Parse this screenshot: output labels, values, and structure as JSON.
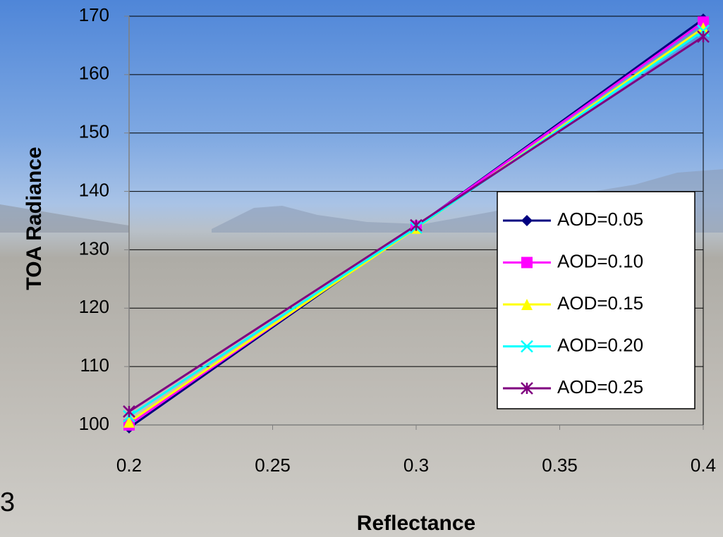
{
  "chart_data": {
    "type": "line",
    "x_label": "Reflectance",
    "y_label": "TOA Radiance",
    "annotations": [
      "3"
    ],
    "x": [
      0.2,
      0.3,
      0.4
    ],
    "series": [
      {
        "name": "AOD=0.05",
        "color": "#000080",
        "marker": "diamond",
        "values": [
          99.5,
          134,
          169.5
        ]
      },
      {
        "name": "AOD=0.10",
        "color": "#ff00ff",
        "marker": "square",
        "values": [
          100,
          134,
          169
        ]
      },
      {
        "name": "AOD=0.15",
        "color": "#ffff00",
        "marker": "triangle",
        "values": [
          100.5,
          133.7,
          168
        ]
      },
      {
        "name": "AOD=0.20",
        "color": "#00ffff",
        "marker": "x",
        "values": [
          101.5,
          133.8,
          167.5
        ]
      },
      {
        "name": "AOD=0.25",
        "color": "#800080",
        "marker": "star",
        "values": [
          102.3,
          134.2,
          166.5
        ]
      }
    ],
    "xlim": [
      0.2,
      0.4
    ],
    "xticks": [
      0.2,
      0.25,
      0.3,
      0.35,
      0.4
    ],
    "ylim": [
      100,
      170
    ],
    "yticks": [
      100,
      110,
      120,
      130,
      140,
      150,
      160,
      170
    ],
    "grid": true,
    "legend": "right"
  }
}
